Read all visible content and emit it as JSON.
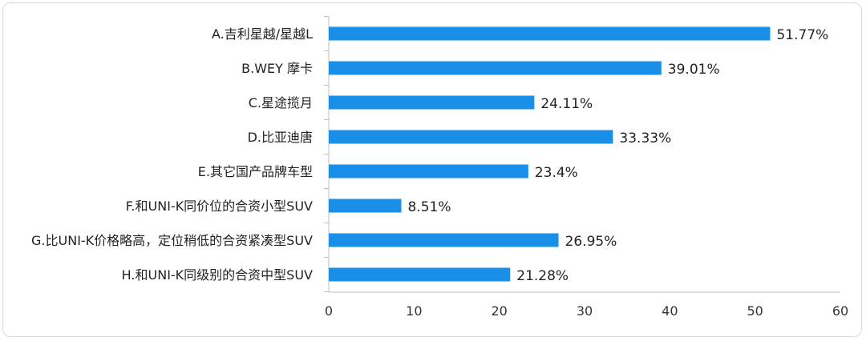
{
  "chart_data": {
    "type": "bar",
    "orientation": "horizontal",
    "categories": [
      "A.吉利星越/星越L",
      "B.WEY 摩卡",
      "C.星途揽月",
      "D.比亚迪唐",
      "E.其它国产品牌车型",
      "F.和UNI-K同价位的合资小型SUV",
      "G.比UNI-K价格略高，定位稍低的合资紧凑型SUV",
      "H.和UNI-K同级别的合资中型SUV"
    ],
    "values": [
      51.77,
      39.01,
      24.11,
      33.33,
      23.4,
      8.51,
      26.95,
      21.28
    ],
    "value_labels": [
      "51.77%",
      "39.01%",
      "24.11%",
      "33.33%",
      "23.4%",
      "8.51%",
      "26.95%",
      "21.28%"
    ],
    "xlim": [
      0,
      60
    ],
    "x_ticks": [
      "0",
      "10",
      "20",
      "30",
      "40",
      "50",
      "60"
    ],
    "bar_color": "#1a8fe8",
    "grid": false,
    "legend": "none"
  }
}
